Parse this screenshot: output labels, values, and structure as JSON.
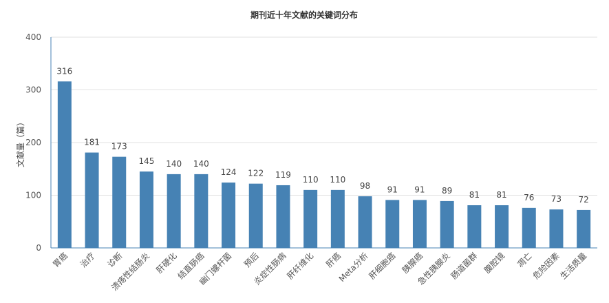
{
  "chart_data": {
    "type": "bar",
    "title": "期刊近十年文献的关键词分布",
    "xlabel": "",
    "ylabel": "文献量（篇）",
    "ylim": [
      0,
      400
    ],
    "yticks": [
      0,
      100,
      200,
      300,
      400
    ],
    "grid": true,
    "bar_color": "#4682b4",
    "categories": [
      "胃癌",
      "治疗",
      "诊断",
      "溃疡性结肠炎",
      "肝硬化",
      "结直肠癌",
      "幽门螺杆菌",
      "预后",
      "炎症性肠病",
      "肝纤维化",
      "肝癌",
      "Meta分析",
      "肝细胞癌",
      "胰腺癌",
      "急性胰腺炎",
      "肠道菌群",
      "腹腔镜",
      "凋亡",
      "危险因素",
      "生活质量"
    ],
    "values": [
      316,
      181,
      173,
      145,
      140,
      140,
      124,
      122,
      119,
      110,
      110,
      98,
      91,
      91,
      89,
      81,
      81,
      76,
      73,
      72
    ]
  }
}
